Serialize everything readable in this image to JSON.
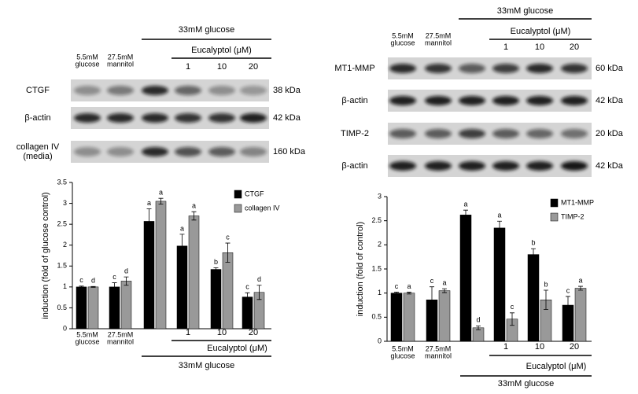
{
  "panels": [
    {
      "condition": "33mM glucose",
      "treatment": "Eucalyptol (μM)",
      "lanes": [
        "5.5mM\nglucose",
        "27.5mM\nmannitol",
        "1",
        "10",
        "20"
      ],
      "rows": [
        {
          "label": "CTGF",
          "size": "38 kDa"
        },
        {
          "label": "β-actin",
          "size": "42 kDa"
        },
        {
          "label": "collagen IV\n(media)",
          "size": "160 kDa"
        }
      ]
    },
    {
      "condition": "33mM glucose",
      "treatment": "Eucalyptol (μM)",
      "lanes": [
        "5.5mM\nglucose",
        "27.5mM\nmannitol",
        "1",
        "10",
        "20"
      ],
      "rows": [
        {
          "label": "MT1-MMP",
          "size": "60 kDa"
        },
        {
          "label": "β-actin",
          "size": "42 kDa"
        },
        {
          "label": "TIMP-2",
          "size": "20 kDa"
        },
        {
          "label": "β-actin",
          "size": "42 kDa"
        }
      ]
    }
  ],
  "chart_data": [
    {
      "type": "bar",
      "ylabel": "induction (fold of glucose control)",
      "ylim": [
        0,
        3.5
      ],
      "yticks": [
        0,
        0.5,
        1,
        1.5,
        2,
        2.5,
        3,
        3.5
      ],
      "categories": [
        "5.5mM\nglucose",
        "27.5mM\nmannitol",
        null,
        "1",
        "10",
        "20"
      ],
      "treatment": "Eucalyptol (μM)",
      "condition": "33mM glucose",
      "legend": "upper right",
      "series": [
        {
          "name": "CTGF",
          "color": "#000000",
          "values": [
            1.0,
            1.0,
            2.57,
            1.98,
            1.42,
            0.76
          ],
          "errors": [
            0.02,
            0.1,
            0.3,
            0.28,
            0.04,
            0.1
          ],
          "sig_letters": [
            "c",
            "c",
            "a",
            "a",
            "b",
            "c"
          ]
        },
        {
          "name": "collagen IV",
          "color": "#999999",
          "values": [
            1.0,
            1.14,
            3.05,
            2.7,
            1.82,
            0.87
          ],
          "errors": [
            0.01,
            0.1,
            0.07,
            0.1,
            0.23,
            0.17
          ],
          "sig_letters": [
            "d",
            "d",
            "a",
            "a",
            "c",
            "d"
          ]
        }
      ]
    },
    {
      "type": "bar",
      "ylabel": "induction (fold of control)",
      "ylim": [
        0,
        3
      ],
      "yticks": [
        0,
        0.5,
        1,
        1.5,
        2,
        2.5,
        3
      ],
      "categories": [
        "5.5mM\nglucose",
        "27.5mM\nmannitol",
        null,
        "1",
        "10",
        "20"
      ],
      "treatment": "Eucalyptol (μM)",
      "condition": "33mM glucose",
      "legend": "upper right",
      "series": [
        {
          "name": "MT1-MMP",
          "color": "#000000",
          "values": [
            1.0,
            0.86,
            2.62,
            2.35,
            1.8,
            0.75
          ],
          "errors": [
            0.02,
            0.27,
            0.1,
            0.14,
            0.12,
            0.18
          ],
          "sig_letters": [
            "c",
            "c",
            "a",
            "a",
            "b",
            "c"
          ]
        },
        {
          "name": "TIMP-2",
          "color": "#999999",
          "values": [
            1.0,
            1.05,
            0.28,
            0.46,
            0.86,
            1.1
          ],
          "errors": [
            0.02,
            0.04,
            0.04,
            0.13,
            0.2,
            0.04
          ],
          "sig_letters": [
            "a",
            "a",
            "d",
            "c",
            "b",
            "a"
          ]
        }
      ]
    }
  ]
}
